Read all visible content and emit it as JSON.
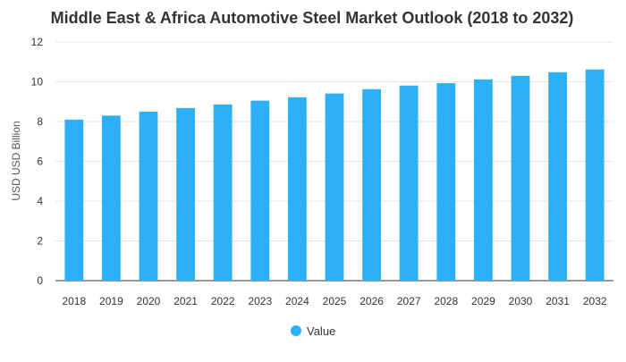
{
  "chart_data": {
    "type": "bar",
    "title": "Middle East & Africa Automotive Steel Market Outlook (2018 to 2032)",
    "xlabel": "",
    "ylabel": "USD USD Billion",
    "ylim": [
      0,
      12
    ],
    "yticks": [
      0,
      2,
      4,
      6,
      8,
      10,
      12
    ],
    "grid": true,
    "legend_position": "bottom-center",
    "categories": [
      "2018",
      "2019",
      "2020",
      "2021",
      "2022",
      "2023",
      "2024",
      "2025",
      "2026",
      "2027",
      "2028",
      "2029",
      "2030",
      "2031",
      "2032"
    ],
    "series": [
      {
        "name": "Value",
        "color": "#2bb0f9",
        "values": [
          8.1,
          8.3,
          8.5,
          8.68,
          8.86,
          9.05,
          9.22,
          9.41,
          9.63,
          9.81,
          9.93,
          10.12,
          10.3,
          10.48,
          10.62
        ]
      }
    ]
  },
  "colors": {
    "bar": "#2bb0f9",
    "grid": "#e6e6e6",
    "axis": "#333333",
    "text": "#333333",
    "title": "#333333"
  }
}
